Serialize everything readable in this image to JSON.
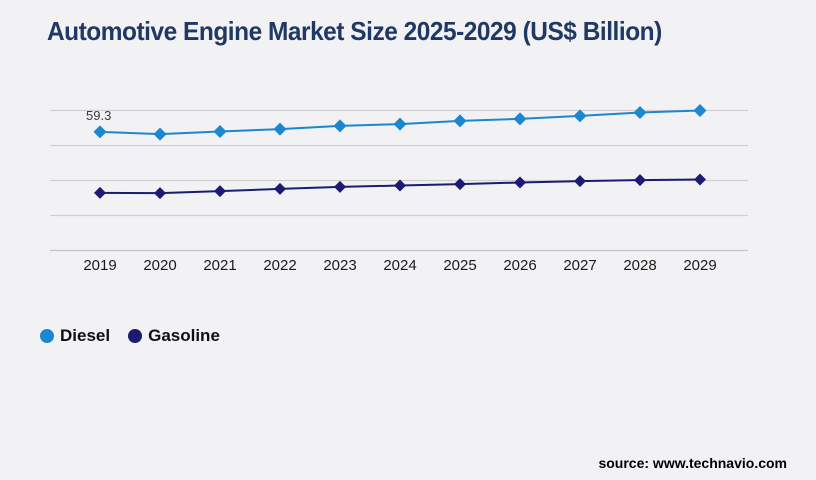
{
  "title": "Automotive Engine Market Size 2025-2029 (US$ Billion)",
  "source": {
    "label": "source: www.technavio.com"
  },
  "colors": {
    "background": "#f2f2f4",
    "title_text": "#1f3864",
    "gridline": "#d0d0d4",
    "axis_line": "#c6c6ca",
    "diesel": "#1b87d1",
    "gasoline": "#1b1b73"
  },
  "chart_data": {
    "type": "line",
    "title": "Automotive Engine Market Size 2025-2029 (US$ Billion)",
    "x": [
      "2019",
      "2020",
      "2021",
      "2022",
      "2023",
      "2024",
      "2025",
      "2026",
      "2027",
      "2028",
      "2029"
    ],
    "xlabel": "",
    "ylabel": "",
    "ylim": [
      0,
      80
    ],
    "y_gridline_values": [
      0,
      17.5,
      35,
      52.5,
      70
    ],
    "y_axis_labels_visible": false,
    "grid": "horizontal",
    "legend_position": "bottom-left",
    "marker": "diamond",
    "series": [
      {
        "name": "Diesel",
        "color": "#1b87d1",
        "values": [
          59.3,
          58.2,
          59.5,
          60.7,
          62.3,
          63.2,
          64.8,
          65.8,
          67.3,
          69.0,
          70.0
        ]
      },
      {
        "name": "Gasoline",
        "color": "#1b1b73",
        "values": [
          28.8,
          28.7,
          29.7,
          30.8,
          31.8,
          32.5,
          33.2,
          34.0,
          34.7,
          35.2,
          35.5
        ]
      }
    ],
    "annotation": {
      "text": "59.3",
      "series": "Diesel",
      "x": "2019"
    }
  }
}
